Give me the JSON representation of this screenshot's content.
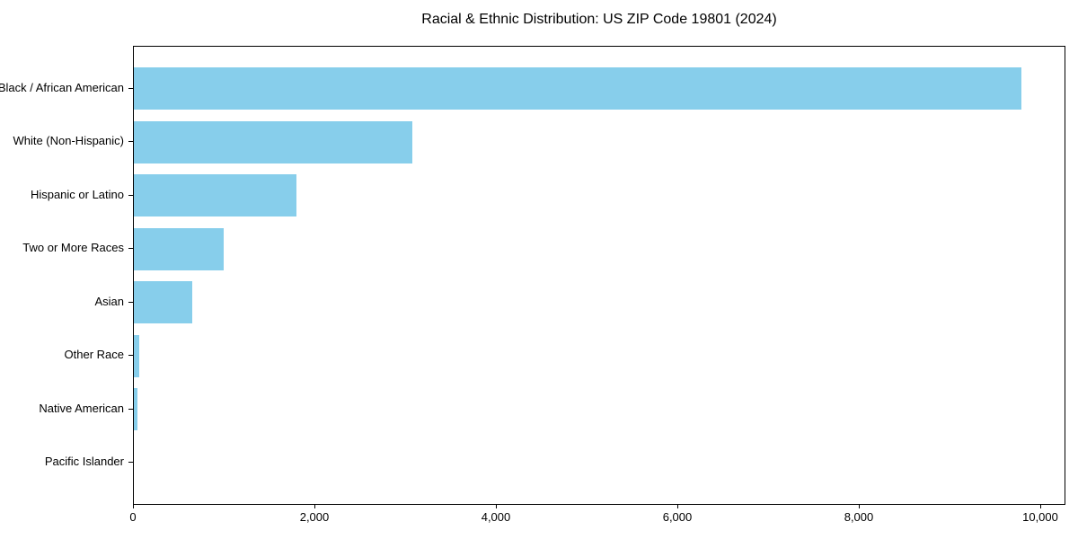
{
  "chart_data": {
    "type": "bar",
    "orientation": "horizontal",
    "title": "Racial & Ethnic Distribution: US ZIP Code 19801 (2024)",
    "categories": [
      "Black / African American",
      "White (Non-Hispanic)",
      "Hispanic or Latino",
      "Two or More Races",
      "Asian",
      "Other Race",
      "Native American",
      "Pacific Islander"
    ],
    "values": [
      9780,
      3070,
      1790,
      990,
      640,
      55,
      35,
      0
    ],
    "xlabel": "",
    "ylabel": "",
    "xlim": [
      0,
      10270
    ],
    "x_ticks": [
      0,
      2000,
      4000,
      6000,
      8000,
      10000
    ],
    "x_tick_labels": [
      "0",
      "2,000",
      "4,000",
      "6,000",
      "8,000",
      "10,000"
    ],
    "bar_color": "#87CEEB",
    "spine_color": "#000000",
    "text_color": "#000000",
    "grid": false,
    "legend": null
  }
}
